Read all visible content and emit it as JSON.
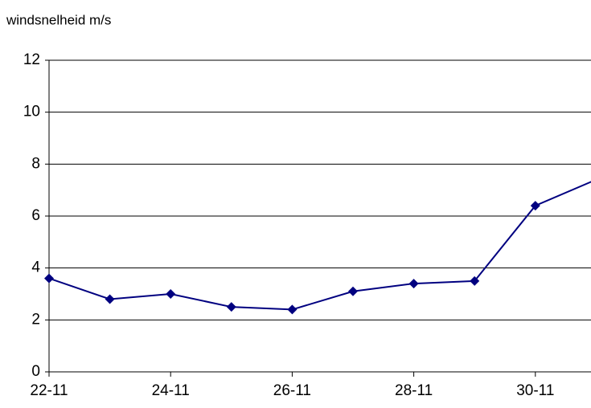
{
  "chart_data": {
    "type": "line",
    "y_label": "windsnelheid m/s",
    "categories": [
      "22-11",
      null,
      "24-11",
      null,
      "26-11",
      null,
      "28-11",
      null,
      "30-11",
      null
    ],
    "series": [
      {
        "name": null,
        "color": "#000080",
        "values": [
          3.6,
          2.8,
          3.0,
          2.5,
          2.4,
          3.1,
          3.4,
          3.5,
          6.4,
          7.4
        ]
      }
    ],
    "ylim": [
      0,
      12
    ],
    "yticks": [
      0,
      2,
      4,
      6,
      8,
      10,
      12
    ],
    "grid": true
  }
}
